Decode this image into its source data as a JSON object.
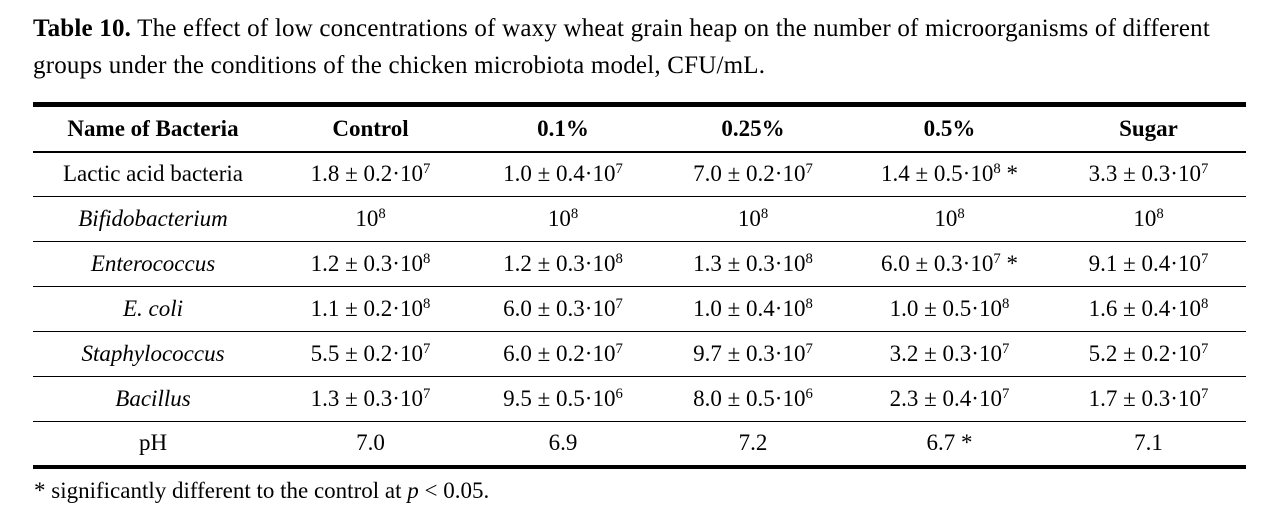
{
  "colors": {
    "text": "#000000",
    "background": "#ffffff",
    "rule": "#000000"
  },
  "caption": {
    "label": "Table 10.",
    "text": "The effect of low concentrations of waxy wheat grain heap on the number of microorganisms of different groups under the conditions of the chicken microbiota model, CFU/mL."
  },
  "table": {
    "columns": [
      "Name of Bacteria",
      "Control",
      "0.1%",
      "0.25%",
      "0.5%",
      "Sugar"
    ],
    "rows": [
      {
        "name": "Lactic acid bacteria",
        "italic": false,
        "values": [
          "1.8 ± 0.2·10^7",
          "1.0 ± 0.4·10^7",
          "7.0 ± 0.2·10^7",
          "1.4 ± 0.5·10^8 *",
          "3.3 ± 0.3·10^7"
        ]
      },
      {
        "name": "Bifidobacterium",
        "italic": true,
        "values": [
          "10^8",
          "10^8",
          "10^8",
          "10^8",
          "10^8"
        ]
      },
      {
        "name": "Enterococcus",
        "italic": true,
        "values": [
          "1.2 ± 0.3·10^8",
          "1.2 ± 0.3·10^8",
          "1.3 ± 0.3·10^8",
          "6.0 ± 0.3·10^7 *",
          "9.1 ± 0.4·10^7"
        ]
      },
      {
        "name": "E. coli",
        "italic": true,
        "values": [
          "1.1 ± 0.2·10^8",
          "6.0 ± 0.3·10^7",
          "1.0 ± 0.4·10^8",
          "1.0 ± 0.5·10^8",
          "1.6 ± 0.4·10^8"
        ]
      },
      {
        "name": "Staphylococcus",
        "italic": true,
        "values": [
          "5.5 ± 0.2·10^7",
          "6.0 ± 0.2·10^7",
          "9.7 ± 0.3·10^7",
          "3.2 ± 0.3·10^7",
          "5.2 ± 0.2·10^7"
        ]
      },
      {
        "name": "Bacillus",
        "italic": true,
        "values": [
          "1.3 ± 0.3·10^7",
          "9.5 ± 0.5·10^6",
          "8.0 ± 0.5·10^6",
          "2.3 ± 0.4·10^7",
          "1.7 ± 0.3·10^7"
        ]
      },
      {
        "name": "pH",
        "italic": false,
        "values": [
          "7.0",
          "6.9",
          "7.2",
          "6.7 *",
          "7.1"
        ]
      }
    ]
  },
  "footnote": {
    "text": "* significantly different to the control at",
    "p_symbol": "p",
    "condition": "< 0.05."
  }
}
